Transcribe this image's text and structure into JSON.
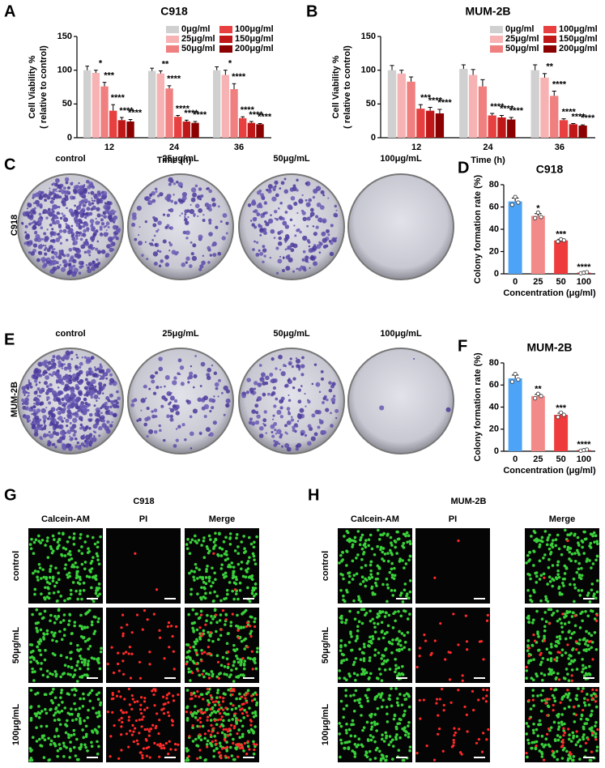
{
  "chart_data": [
    {
      "panel": "A",
      "type": "bar",
      "title": "C918",
      "categories": [
        12,
        24,
        36
      ],
      "xlabel": "Time (h)",
      "ylabel": [
        "Cell Viability %",
        "( relative to control)"
      ],
      "ylim": [
        0,
        150
      ],
      "yticks": [
        0,
        50,
        100,
        150
      ],
      "series": [
        {
          "name": "0μg/ml",
          "color": "#d0d0d0",
          "values": [
            100,
            99,
            100
          ],
          "errors": [
            6,
            4,
            5
          ]
        },
        {
          "name": "25μg/ml",
          "color": "#f7b3b3",
          "values": [
            96,
            95,
            93
          ],
          "errors": [
            4,
            4,
            7
          ],
          "significance": [
            "*",
            "**",
            "*"
          ]
        },
        {
          "name": "50μg/ml",
          "color": "#f08080",
          "values": [
            76,
            73,
            72
          ],
          "errors": [
            6,
            4,
            8
          ],
          "significance": [
            "***",
            "****",
            "****"
          ]
        },
        {
          "name": "100μg/ml",
          "color": "#e84040",
          "values": [
            40,
            31,
            29
          ],
          "errors": [
            9,
            2,
            2
          ],
          "significance": [
            "****",
            "****",
            "****"
          ]
        },
        {
          "name": "150μg/ml",
          "color": "#c01818",
          "values": [
            26,
            24,
            22
          ],
          "errors": [
            4,
            2,
            2
          ],
          "significance": [
            "****",
            "****",
            "****"
          ]
        },
        {
          "name": "200μg/ml",
          "color": "#8b0000",
          "values": [
            24,
            22,
            20
          ],
          "errors": [
            3,
            2,
            1
          ],
          "significance": [
            "****",
            "****",
            "****"
          ]
        }
      ]
    },
    {
      "panel": "B",
      "type": "bar",
      "title": "MUM-2B",
      "categories": [
        12,
        24,
        36
      ],
      "xlabel": "Time (h)",
      "ylabel": [
        "Cell Viability %",
        "( relative to control)"
      ],
      "ylim": [
        0,
        150
      ],
      "yticks": [
        0,
        50,
        100,
        150
      ],
      "series": [
        {
          "name": "0μg/ml",
          "color": "#d0d0d0",
          "values": [
            100,
            102,
            100
          ],
          "errors": [
            7,
            6,
            8
          ]
        },
        {
          "name": "25μg/ml",
          "color": "#f7b3b3",
          "values": [
            95,
            93,
            89
          ],
          "errors": [
            5,
            8,
            6
          ],
          "significance": [
            null,
            null,
            "**"
          ]
        },
        {
          "name": "50μg/ml",
          "color": "#f08080",
          "values": [
            83,
            76,
            62
          ],
          "errors": [
            7,
            10,
            7
          ],
          "significance": [
            null,
            null,
            "****"
          ]
        },
        {
          "name": "100μg/ml",
          "color": "#e84040",
          "values": [
            43,
            33,
            26
          ],
          "errors": [
            6,
            3,
            2
          ],
          "significance": [
            "***",
            "****",
            "****"
          ]
        },
        {
          "name": "150μg/ml",
          "color": "#c01818",
          "values": [
            40,
            30,
            20
          ],
          "errors": [
            5,
            3,
            1
          ],
          "significance": [
            "****",
            "****",
            "****"
          ]
        },
        {
          "name": "200μg/ml",
          "color": "#8b0000",
          "values": [
            36,
            27,
            18
          ],
          "errors": [
            6,
            3,
            1
          ],
          "significance": [
            "****",
            "****",
            "****"
          ]
        }
      ]
    },
    {
      "panel": "D",
      "type": "bar",
      "title": "C918",
      "categories": [
        0,
        25,
        50,
        100
      ],
      "xlabel": "Concentration (μg/ml)",
      "ylabel": "Colony formation rate (%)",
      "ylim": [
        0,
        80
      ],
      "yticks": [
        0,
        20,
        40,
        60,
        80
      ],
      "values": [
        65,
        52,
        30,
        1
      ],
      "errors": [
        3,
        2,
        1,
        0.5
      ],
      "colors": [
        "#4da3f5",
        "#f28a8a",
        "#ee3b3b",
        "#d42020"
      ],
      "significance": [
        null,
        "*",
        "***",
        "****"
      ],
      "points": [
        [
          62,
          69,
          64
        ],
        [
          50,
          55,
          51
        ],
        [
          29,
          31,
          30
        ],
        [
          0.5,
          1,
          1.5
        ]
      ]
    },
    {
      "panel": "F",
      "type": "bar",
      "title": "MUM-2B",
      "categories": [
        0,
        25,
        50,
        100
      ],
      "xlabel": "Concentration (μg/ml)",
      "ylabel": "Colony formation rate (%)",
      "ylim": [
        0,
        80
      ],
      "yticks": [
        0,
        20,
        40,
        60,
        80
      ],
      "values": [
        66,
        50,
        33,
        1
      ],
      "errors": [
        3,
        1.5,
        1.5,
        0.5
      ],
      "colors": [
        "#4da3f5",
        "#f28a8a",
        "#ee3b3b",
        "#d42020"
      ],
      "significance": [
        null,
        "**",
        "***",
        "****"
      ],
      "points": [
        [
          63,
          70,
          65
        ],
        [
          48,
          52,
          50
        ],
        [
          31,
          35,
          33
        ],
        [
          0.5,
          1,
          1.5
        ]
      ]
    }
  ],
  "colony_assay": [
    {
      "panel": "C",
      "cell_line": "C918",
      "columns": [
        "control",
        "25μg/mL",
        "50μg/mL",
        "100μg/mL"
      ]
    },
    {
      "panel": "E",
      "cell_line": "MUM-2B",
      "columns": [
        "control",
        "25μg/mL",
        "50μg/mL",
        "100μg/mL"
      ]
    }
  ],
  "live_dead_staining": [
    {
      "panel": "G",
      "title": "C918",
      "columns": [
        "Calcein-AM",
        "PI",
        "Merge"
      ],
      "rows": [
        "control",
        "50μg/mL",
        "100μg/mL"
      ]
    },
    {
      "panel": "H",
      "title": "MUM-2B",
      "columns": [
        "Calcein-AM",
        "PI",
        "Merge"
      ],
      "rows": [
        "control",
        "50μg/mL",
        "100μg/mL"
      ]
    }
  ]
}
